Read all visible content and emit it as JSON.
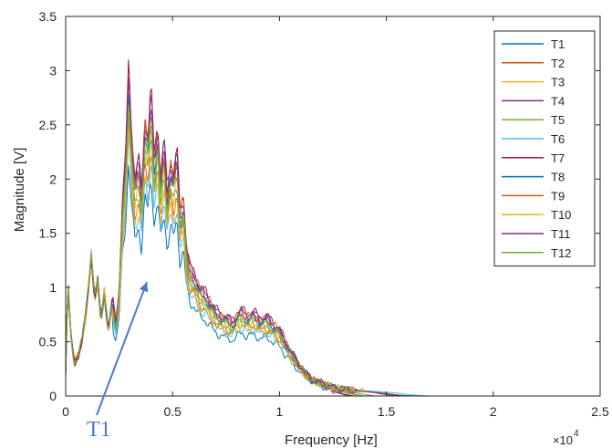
{
  "chart_data": {
    "type": "line",
    "title": "",
    "xlabel": "Frequency [Hz]",
    "ylabel": "Magnitude  [V]",
    "x_exponent_label": "×10",
    "x_exponent_power": "4",
    "xlim": [
      0,
      25000
    ],
    "ylim": [
      0,
      3.5
    ],
    "grid": false,
    "legend_position": "top-right",
    "x_ticks": [
      0,
      5000,
      10000,
      15000,
      20000,
      25000
    ],
    "x_tick_labels": [
      "0",
      "0.5",
      "1",
      "1.5",
      "2",
      "2.5"
    ],
    "y_ticks": [
      0,
      0.5,
      1,
      1.5,
      2,
      2.5,
      3,
      3.5
    ],
    "y_tick_labels": [
      "0",
      "0.5",
      "1",
      "1.5",
      "2",
      "2.5",
      "3",
      "3.5"
    ],
    "annotation": {
      "text": "T1",
      "color": "#4a7bc8",
      "points_to": [
        3800,
        1.05
      ]
    },
    "series": [
      {
        "name": "T1",
        "color": "#0072bd",
        "scale": 0.7,
        "cutoff": 11800
      },
      {
        "name": "T2",
        "color": "#d95319",
        "scale": 0.82,
        "cutoff": 12000
      },
      {
        "name": "T3",
        "color": "#edb120",
        "scale": 0.88,
        "cutoff": 12300
      },
      {
        "name": "T4",
        "color": "#7e2f8e",
        "scale": 0.94,
        "cutoff": 11900
      },
      {
        "name": "T5",
        "color": "#77ac30",
        "scale": 0.86,
        "cutoff": 12500
      },
      {
        "name": "T6",
        "color": "#4dbeee",
        "scale": 0.76,
        "cutoff": 15500
      },
      {
        "name": "T7",
        "color": "#a2142f",
        "scale": 1.0,
        "cutoff": 15300
      },
      {
        "name": "T8",
        "color": "#0072bd",
        "scale": 0.92,
        "cutoff": 15000
      },
      {
        "name": "T9",
        "color": "#d95319",
        "scale": 0.96,
        "cutoff": 14800
      },
      {
        "name": "T10",
        "color": "#edb120",
        "scale": 0.8,
        "cutoff": 14000
      },
      {
        "name": "T11",
        "color": "#7e2f8e",
        "scale": 0.98,
        "cutoff": 14500
      },
      {
        "name": "T12",
        "color": "#77ac30",
        "scale": 0.9,
        "cutoff": 13000
      }
    ],
    "base_profile": {
      "x": [
        0,
        100,
        250,
        400,
        600,
        800,
        1000,
        1200,
        1350,
        1500,
        1650,
        1800,
        2000,
        2200,
        2350,
        2500,
        2650,
        2800,
        2950,
        3100,
        3250,
        3400,
        3550,
        3700,
        3850,
        4000,
        4150,
        4300,
        4450,
        4600,
        4750,
        4900,
        5050,
        5200,
        5350,
        5500,
        5650,
        5800,
        6000,
        6300,
        6600,
        7000,
        7400,
        7800,
        8200,
        8500,
        8800,
        9100,
        9400,
        9700,
        10000,
        10300,
        10600,
        10900,
        11200,
        11500,
        11800,
        12000,
        12500,
        13000,
        13500,
        14000,
        14500,
        15000,
        15500,
        16000,
        20000,
        24000
      ],
      "y": [
        0.2,
        1.05,
        0.55,
        0.3,
        0.38,
        0.55,
        0.85,
        1.3,
        0.9,
        1.05,
        0.7,
        0.95,
        0.6,
        0.9,
        0.7,
        1.0,
        1.8,
        2.2,
        3.1,
        2.4,
        2.0,
        2.2,
        1.9,
        2.6,
        2.4,
        2.85,
        2.2,
        2.55,
        2.0,
        2.4,
        1.9,
        2.2,
        2.05,
        2.3,
        1.7,
        1.9,
        1.4,
        1.2,
        1.15,
        1.0,
        0.95,
        0.8,
        0.75,
        0.7,
        0.8,
        0.75,
        0.78,
        0.72,
        0.74,
        0.68,
        0.62,
        0.5,
        0.4,
        0.3,
        0.22,
        0.16,
        0.13,
        0.12,
        0.08,
        0.06,
        0.05,
        0.04,
        0.03,
        0.02,
        0.01,
        0.0,
        0.0,
        0.0
      ]
    }
  }
}
